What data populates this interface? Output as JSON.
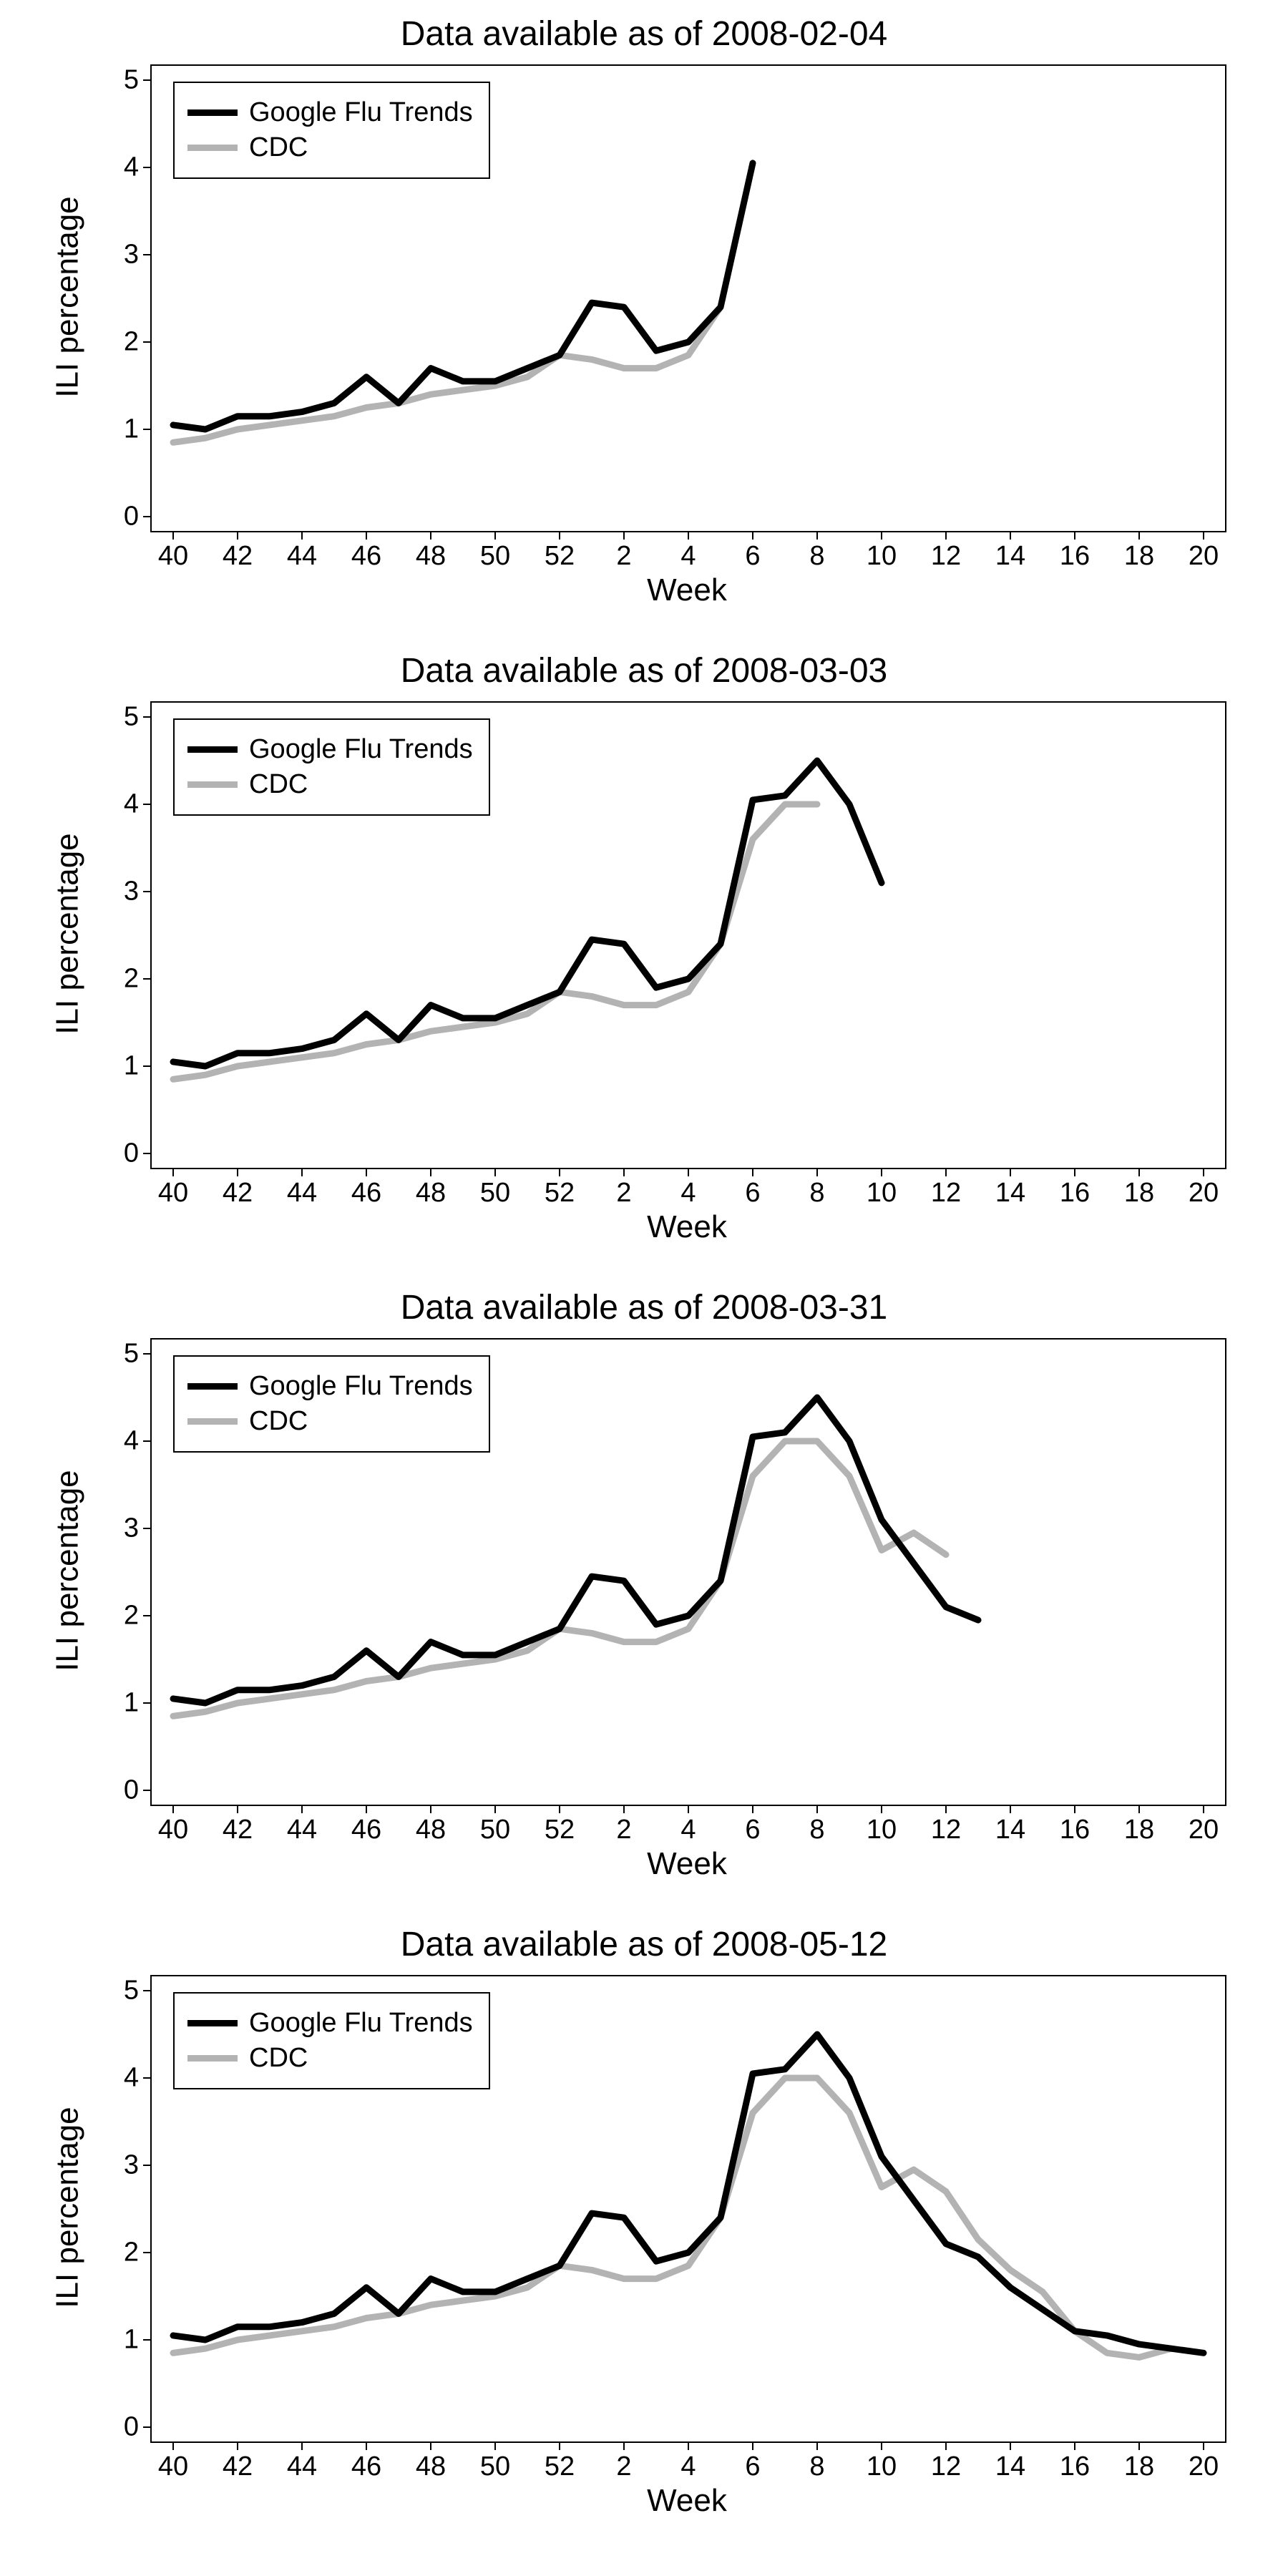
{
  "global": {
    "ylabel": "ILI percentage",
    "xlabel": "Week",
    "legend": {
      "gft": "Google Flu Trends",
      "cdc": "CDC"
    },
    "colors": {
      "gft": "#000000",
      "cdc": "#b3b3b3",
      "axis": "#000000",
      "background": "#ffffff"
    },
    "line_width": 9,
    "title_fontsize": 48,
    "label_fontsize": 44,
    "tick_fontsize": 38,
    "legend_fontsize": 38,
    "x_weeks": [
      40,
      41,
      42,
      43,
      44,
      45,
      46,
      47,
      48,
      49,
      50,
      51,
      52,
      1,
      2,
      3,
      4,
      5,
      6,
      7,
      8,
      9,
      10,
      11,
      12,
      13,
      14,
      15,
      16,
      17,
      18,
      19,
      20
    ],
    "x_ticks": [
      40,
      42,
      44,
      46,
      48,
      50,
      52,
      2,
      4,
      6,
      8,
      10,
      12,
      14,
      16,
      18,
      20
    ],
    "ylim": [
      0,
      5
    ],
    "y_ticks": [
      0,
      1,
      2,
      3,
      4,
      5
    ],
    "xlim_idx": [
      0,
      32
    ]
  },
  "panels": [
    {
      "title": "Data available as of 2008-02-04",
      "gft": [
        1.05,
        1.0,
        1.15,
        1.15,
        1.2,
        1.3,
        1.6,
        1.3,
        1.7,
        1.55,
        1.55,
        1.7,
        1.85,
        2.45,
        2.4,
        1.9,
        2.0,
        2.4,
        4.05
      ],
      "cdc": [
        0.85,
        0.9,
        1.0,
        1.05,
        1.1,
        1.15,
        1.25,
        1.3,
        1.4,
        1.45,
        1.5,
        1.6,
        1.85,
        1.8,
        1.7,
        1.7,
        1.85,
        2.4
      ]
    },
    {
      "title": "Data available as of 2008-03-03",
      "gft": [
        1.05,
        1.0,
        1.15,
        1.15,
        1.2,
        1.3,
        1.6,
        1.3,
        1.7,
        1.55,
        1.55,
        1.7,
        1.85,
        2.45,
        2.4,
        1.9,
        2.0,
        2.4,
        4.05,
        4.1,
        4.5,
        4.0,
        3.1
      ],
      "cdc": [
        0.85,
        0.9,
        1.0,
        1.05,
        1.1,
        1.15,
        1.25,
        1.3,
        1.4,
        1.45,
        1.5,
        1.6,
        1.85,
        1.8,
        1.7,
        1.7,
        1.85,
        2.4,
        3.6,
        4.0,
        4.0
      ]
    },
    {
      "title": "Data available as of 2008-03-31",
      "gft": [
        1.05,
        1.0,
        1.15,
        1.15,
        1.2,
        1.3,
        1.6,
        1.3,
        1.7,
        1.55,
        1.55,
        1.7,
        1.85,
        2.45,
        2.4,
        1.9,
        2.0,
        2.4,
        4.05,
        4.1,
        4.5,
        4.0,
        3.1,
        2.6,
        2.1,
        1.95
      ],
      "cdc": [
        0.85,
        0.9,
        1.0,
        1.05,
        1.1,
        1.15,
        1.25,
        1.3,
        1.4,
        1.45,
        1.5,
        1.6,
        1.85,
        1.8,
        1.7,
        1.7,
        1.85,
        2.4,
        3.6,
        4.0,
        4.0,
        3.6,
        2.75,
        2.95,
        2.7
      ]
    },
    {
      "title": "Data available as of 2008-05-12",
      "gft": [
        1.05,
        1.0,
        1.15,
        1.15,
        1.2,
        1.3,
        1.6,
        1.3,
        1.7,
        1.55,
        1.55,
        1.7,
        1.85,
        2.45,
        2.4,
        1.9,
        2.0,
        2.4,
        4.05,
        4.1,
        4.5,
        4.0,
        3.1,
        2.6,
        2.1,
        1.95,
        1.6,
        1.35,
        1.1,
        1.05,
        0.95,
        0.9,
        0.85
      ],
      "cdc": [
        0.85,
        0.9,
        1.0,
        1.05,
        1.1,
        1.15,
        1.25,
        1.3,
        1.4,
        1.45,
        1.5,
        1.6,
        1.85,
        1.8,
        1.7,
        1.7,
        1.85,
        2.4,
        3.6,
        4.0,
        4.0,
        3.6,
        2.75,
        2.95,
        2.7,
        2.15,
        1.8,
        1.55,
        1.1,
        0.85,
        0.8,
        0.9
      ]
    }
  ]
}
